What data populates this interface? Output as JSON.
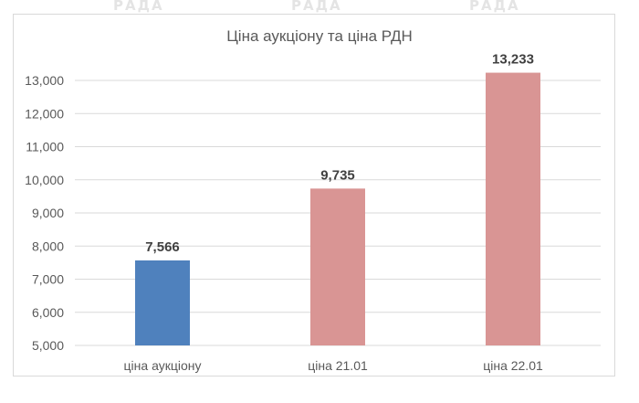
{
  "watermarks": [
    "РАДА",
    "РАДА",
    "РАДА"
  ],
  "colors": {
    "series_primary": "#4f81bd",
    "series_secondary": "#d99594",
    "gridline": "#d9d9d9",
    "axis_text": "#595959",
    "data_label": "#404040"
  },
  "chart_data": {
    "type": "bar",
    "title": "Ціна аукціону та ціна РДН",
    "xlabel": "",
    "ylabel": "",
    "categories": [
      "ціна аукціону",
      "ціна 21.01",
      "ціна 22.01"
    ],
    "values": [
      7566,
      9735,
      13233
    ],
    "data_labels": [
      "7,566",
      "9,735",
      "13,233"
    ],
    "bar_colors": [
      "#4f81bd",
      "#d99594",
      "#d99594"
    ],
    "ylim": [
      5000,
      13000
    ],
    "yticks": [
      5000,
      6000,
      7000,
      8000,
      9000,
      10000,
      11000,
      12000,
      13000
    ],
    "ytick_labels": [
      "5,000",
      "6,000",
      "7,000",
      "8,000",
      "9,000",
      "10,000",
      "11,000",
      "12,000",
      "13,000"
    ],
    "grid": true,
    "legend": "none"
  }
}
